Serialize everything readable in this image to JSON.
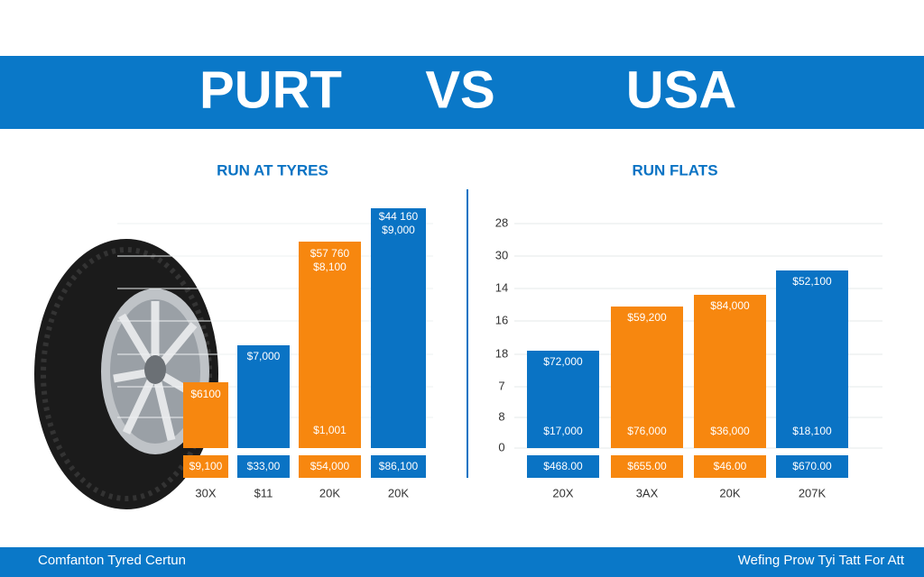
{
  "header": {
    "left": "PURT",
    "middle": "VS",
    "right": "USA"
  },
  "left_panel": {
    "title": "RUN AT TYRES",
    "bars": [
      {
        "labels": [
          "$6100"
        ],
        "bottom_label": "$9,100",
        "x_label": "30X"
      },
      {
        "labels": [
          "$7,000"
        ],
        "bottom_label": "$33,00",
        "x_label": "$11"
      },
      {
        "labels": [
          "$57 760",
          "$8,100",
          "$1,001"
        ],
        "bottom_label": "$54,000",
        "x_label": "20K"
      },
      {
        "labels": [
          "$44 160",
          "$9,000"
        ],
        "bottom_label": "$86,100",
        "x_label": "20K"
      }
    ]
  },
  "right_panel": {
    "title": "RUN FLATS",
    "y_labels": [
      "28",
      "30",
      "14",
      "16",
      "18",
      "7",
      "8",
      "0"
    ],
    "bars": [
      {
        "labels": [
          "$72,000",
          "$17,000"
        ],
        "bottom_label": "$468.00",
        "x_label": "20X"
      },
      {
        "labels": [
          "$59,200",
          "$76,000"
        ],
        "bottom_label": "$655.00",
        "x_label": "3AX"
      },
      {
        "labels": [
          "$84,000",
          "$36,000"
        ],
        "bottom_label": "$46.00",
        "x_label": "20K"
      },
      {
        "labels": [
          "$52,100",
          "$18,100"
        ],
        "bottom_label": "$670.00",
        "x_label": "207K"
      }
    ]
  },
  "footer": {
    "left": "Comfanton Tyred Certun",
    "right": "Wefing Prow Tyi Tatt For Att"
  }
}
